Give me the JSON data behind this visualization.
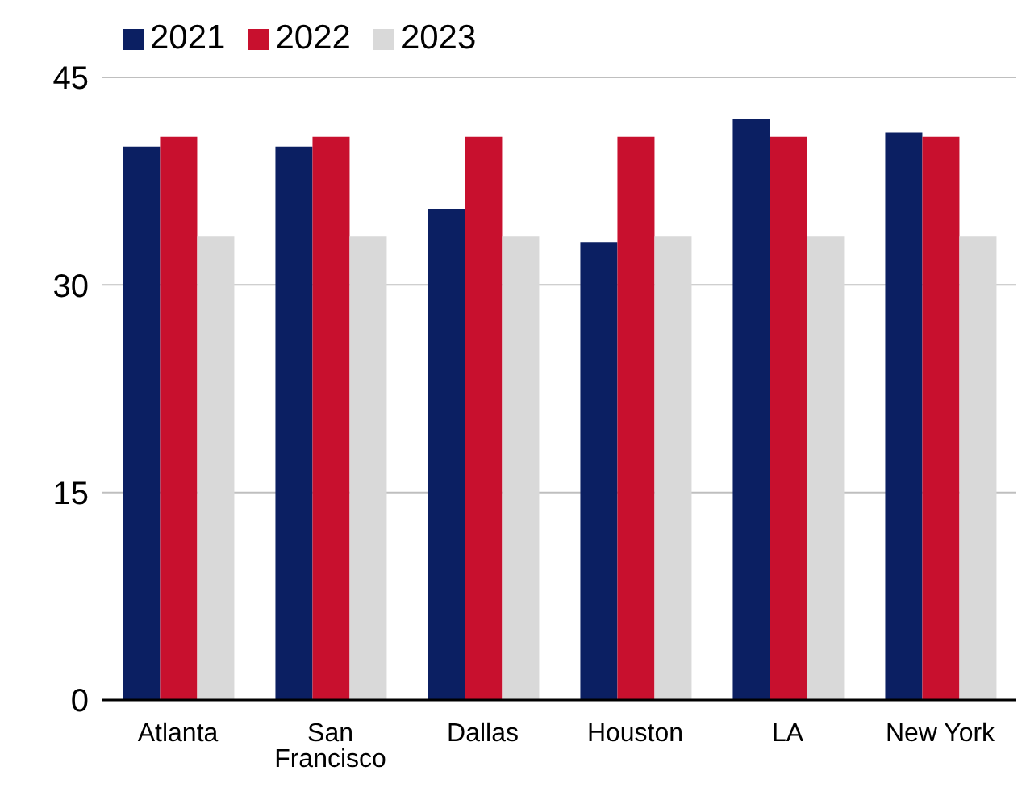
{
  "chart_data": {
    "type": "bar",
    "categories": [
      "Atlanta",
      "San Francisco",
      "Dallas",
      "Houston",
      "LA",
      "New York"
    ],
    "series": [
      {
        "name": "2021",
        "color": "#0b1f62",
        "values": [
          40,
          40,
          35.5,
          33.1,
          42,
          41
        ]
      },
      {
        "name": "2022",
        "color": "#c8102e",
        "values": [
          40.7,
          40.7,
          40.7,
          40.7,
          40.7,
          40.7
        ]
      },
      {
        "name": "2023",
        "color": "#d9d9d9",
        "values": [
          33.5,
          33.5,
          33.5,
          33.5,
          33.5,
          33.5
        ]
      }
    ],
    "ylim": [
      0,
      45
    ],
    "yticks": [
      0,
      15,
      30,
      45
    ],
    "grid": "y",
    "legend": "top left"
  }
}
